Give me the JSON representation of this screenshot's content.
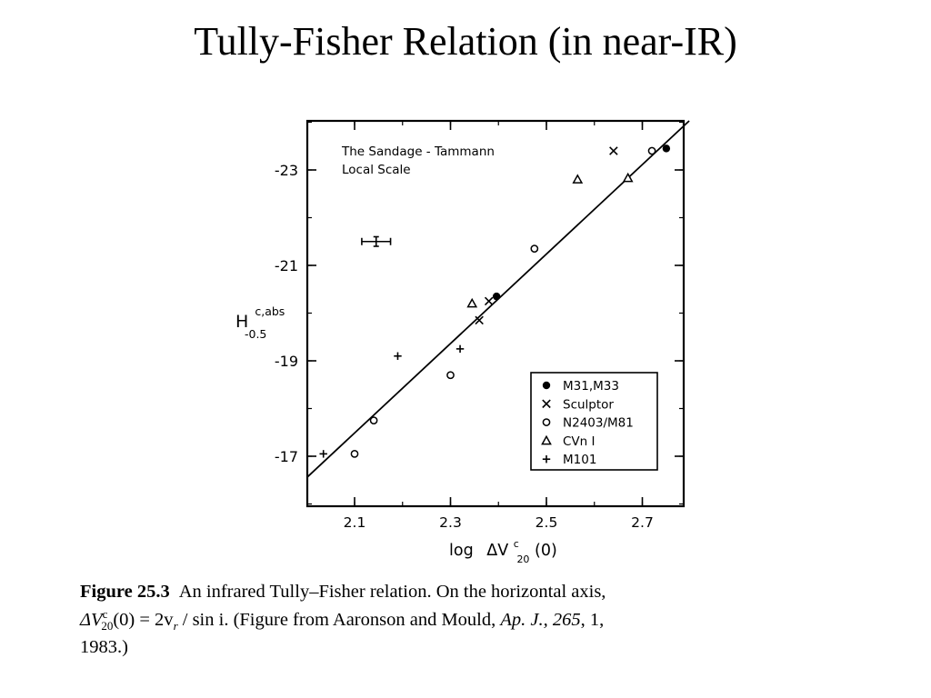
{
  "slide": {
    "title": "Tully-Fisher Relation (in near-IR)"
  },
  "chart_data": {
    "type": "scatter",
    "annotation": [
      "The Sandage - Tammann",
      "Local Scale"
    ],
    "xlabel_main": "log",
    "xlabel_symbol": "ΔV",
    "xlabel_sup": "c",
    "xlabel_sub": "20",
    "xlabel_arg": "(0)",
    "ylabel_main": "H",
    "ylabel_sup": "c,abs",
    "ylabel_sub": "-0.5",
    "xlim": [
      2.0,
      2.8
    ],
    "ylim": [
      -16.0,
      -23.9
    ],
    "xticks": [
      2.1,
      2.3,
      2.5,
      2.7
    ],
    "xtick_labels": [
      "2.1",
      "2.3",
      "2.5",
      "2.7"
    ],
    "yticks": [
      -23,
      -21,
      -19,
      -17
    ],
    "ytick_labels": [
      "-23",
      "-21",
      "-19",
      "-17"
    ],
    "legend_position": "lower-right",
    "series": [
      {
        "name": "M31,M33",
        "marker": "filled-circle",
        "points": [
          [
            2.396,
            -20.35
          ],
          [
            2.75,
            -23.45
          ]
        ]
      },
      {
        "name": "Sculptor",
        "marker": "cross",
        "points": [
          [
            2.64,
            -23.4
          ],
          [
            2.38,
            -20.25
          ],
          [
            2.36,
            -19.85
          ]
        ]
      },
      {
        "name": "N2403/M81",
        "marker": "open-circle",
        "points": [
          [
            2.72,
            -23.4
          ],
          [
            2.475,
            -21.35
          ],
          [
            2.3,
            -18.7
          ],
          [
            2.14,
            -17.75
          ],
          [
            2.1,
            -17.05
          ]
        ]
      },
      {
        "name": "CVn I",
        "marker": "triangle",
        "points": [
          [
            2.565,
            -22.8
          ],
          [
            2.67,
            -22.83
          ],
          [
            2.345,
            -20.2
          ]
        ]
      },
      {
        "name": "M101",
        "marker": "plus",
        "points": [
          [
            2.32,
            -19.25
          ],
          [
            2.19,
            -19.1
          ],
          [
            2.035,
            -17.05
          ]
        ]
      }
    ],
    "fit_line": {
      "x": [
        2.0,
        2.8
      ],
      "y": [
        -16.55,
        -24.05
      ]
    },
    "error_bar": {
      "x": 2.145,
      "y": -21.5,
      "xerr": 0.03,
      "yerr": 0.1
    }
  },
  "caption": {
    "label": "Figure 25.3",
    "text_1": "An infrared Tully–Fisher relation.  On the horizontal axis,",
    "math_1": "ΔV",
    "math_1_sup": "c",
    "math_1_sub": "20",
    "math_2": "(0) = 2v",
    "math_2_sub": "r",
    "math_3": "/ sin i.",
    "text_2": "(Figure from Aaronson and Mould,",
    "journal": "Ap. J.,",
    "volume": "265",
    "text_3": ", 1,",
    "text_4": "1983.)"
  }
}
